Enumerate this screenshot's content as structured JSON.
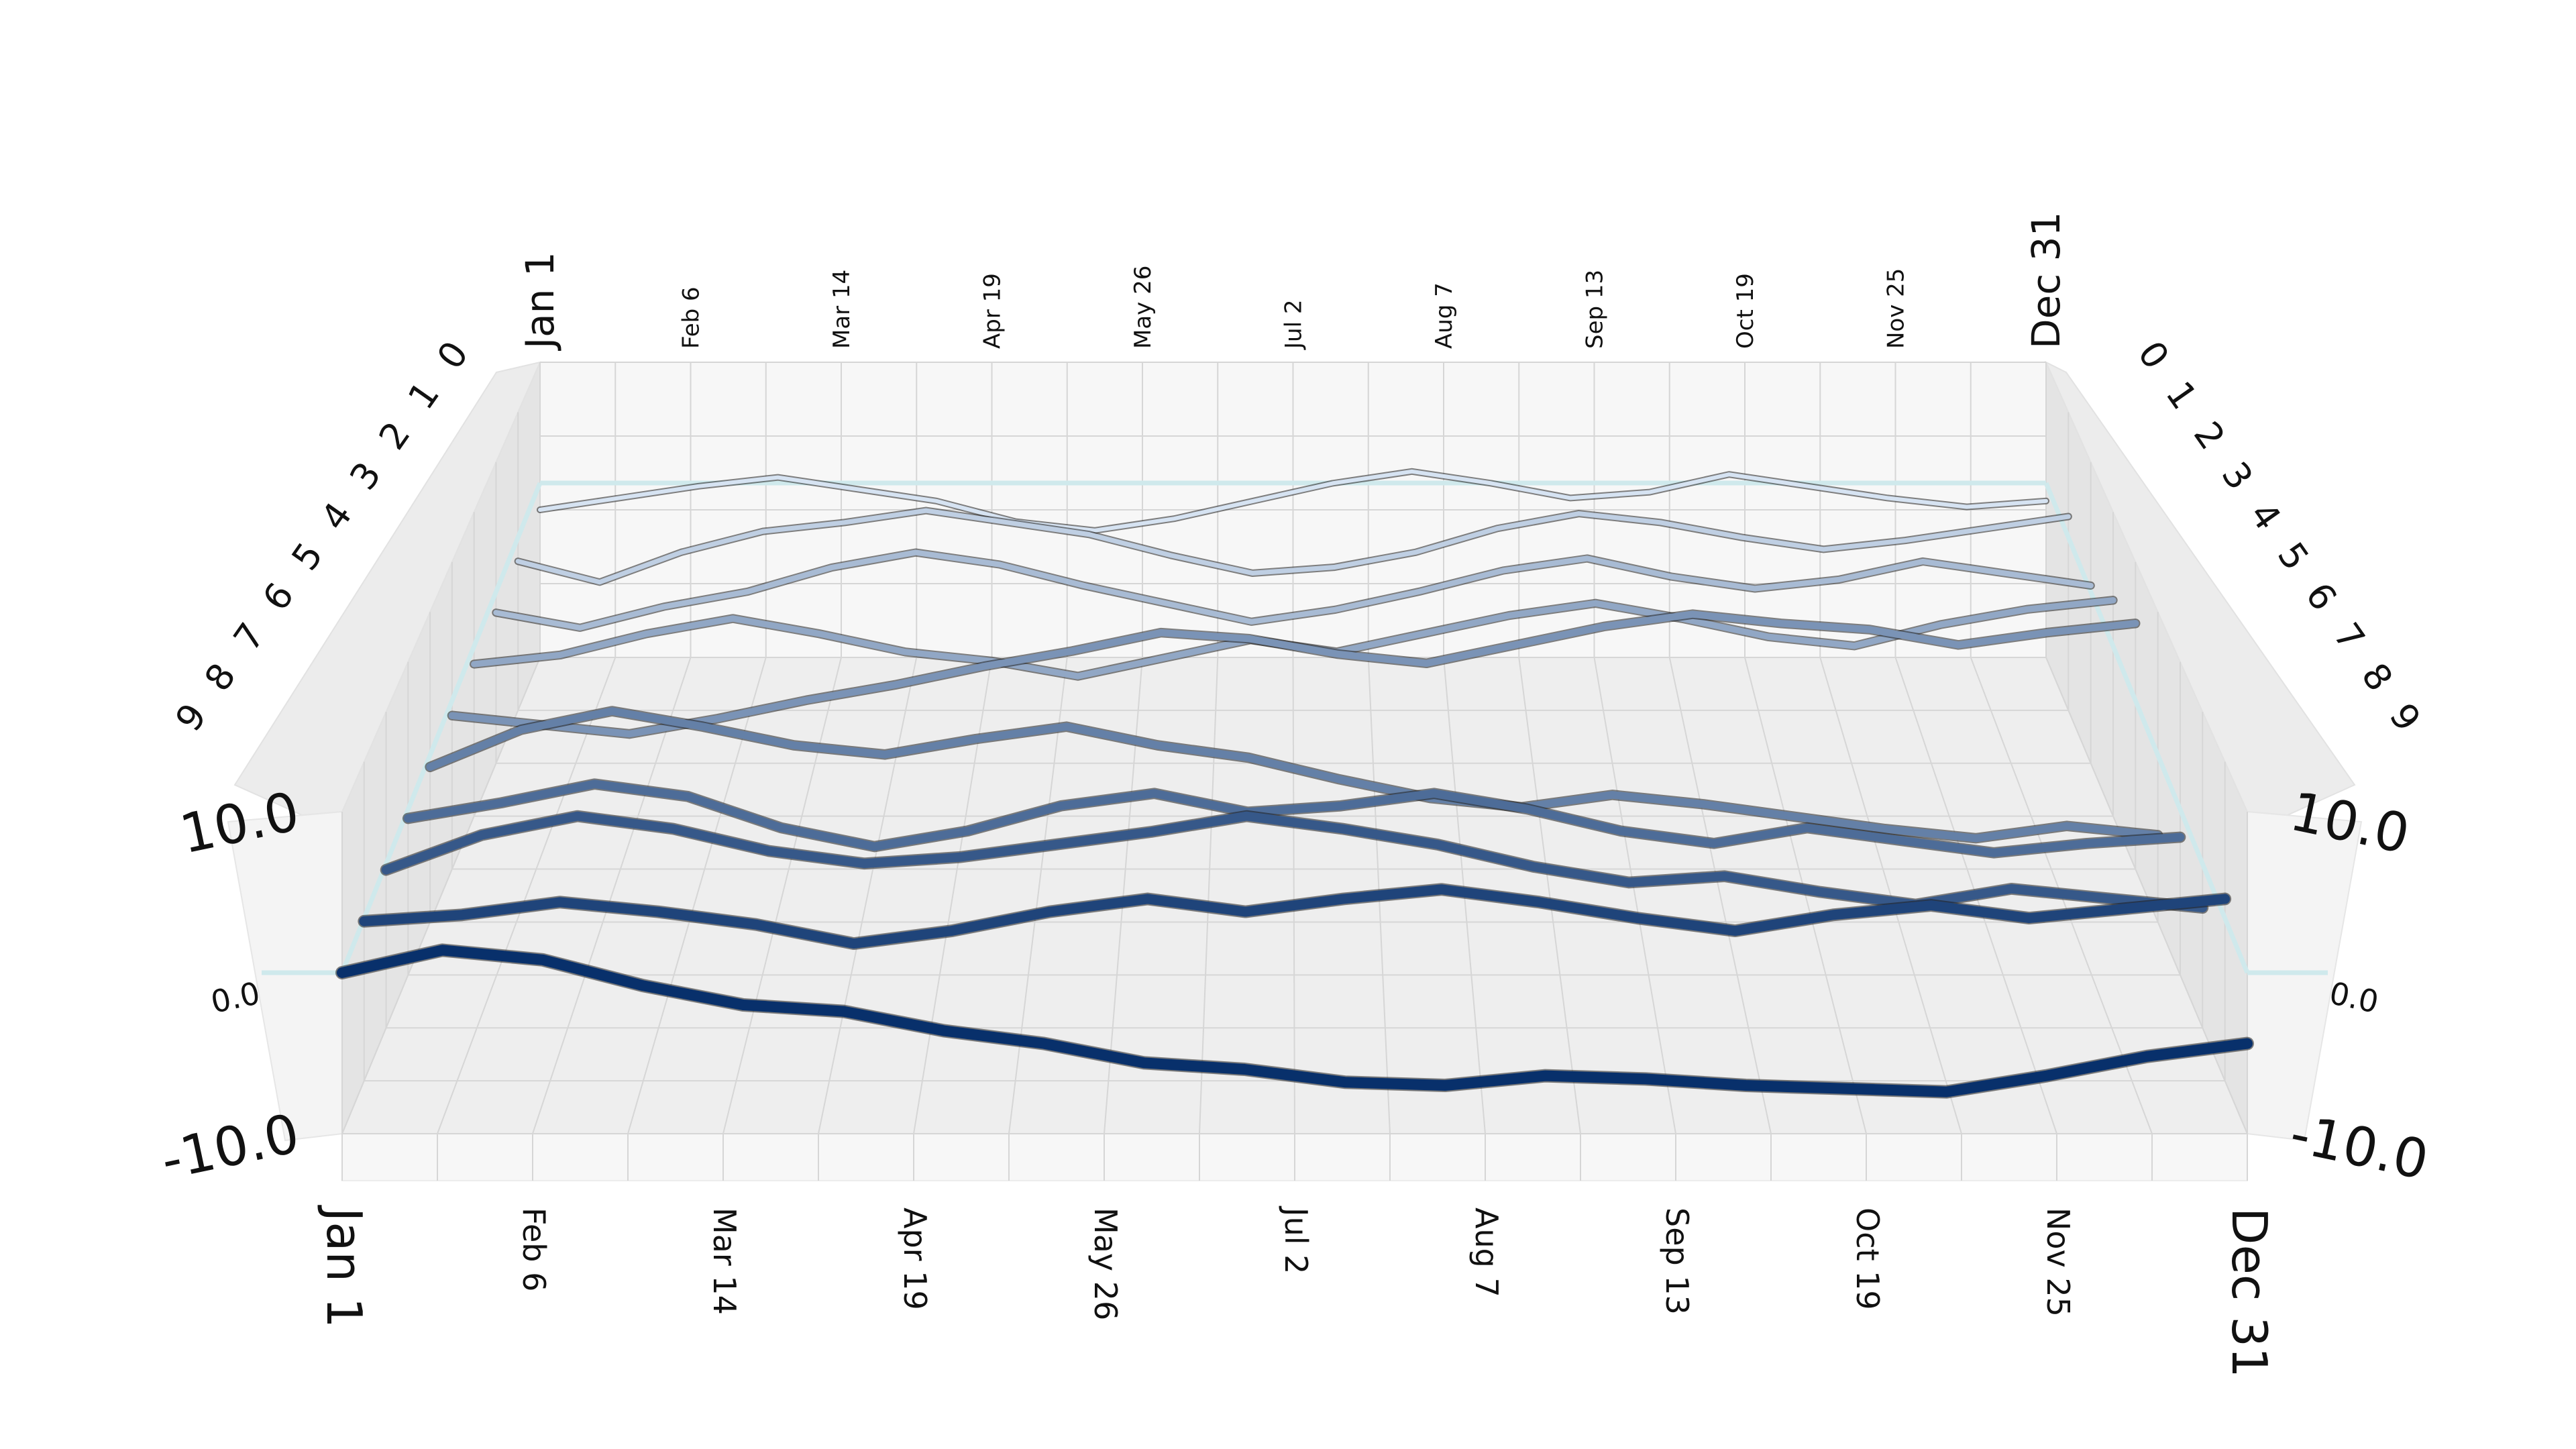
{
  "chart_data": {
    "type": "line",
    "title": "",
    "x_ticks": [
      "Jan 1",
      "Feb 6",
      "Mar 14",
      "Apr 19",
      "May 26",
      "Jul 2",
      "Aug 7",
      "Sep 13",
      "Oct 19",
      "Nov 25",
      "Dec 31"
    ],
    "depth_ticks": [
      "0",
      "1",
      "2",
      "3",
      "4",
      "5",
      "6",
      "7",
      "8",
      "9"
    ],
    "y_ticks": [
      "-10.0",
      "0.0",
      "10.0"
    ],
    "y_range": [
      -10,
      10
    ],
    "depth_range": [
      0,
      9
    ],
    "grid": true,
    "colors": {
      "light": "#d6e3f2",
      "dark": "#08306b",
      "axis_accent": "#cfe9ec",
      "wall_left": "#e4e4e4",
      "wall_back": "#f7f7f7",
      "floor": "#eeeeee"
    },
    "series": [
      {
        "key": "0",
        "values": [
          0.0,
          0.8,
          1.6,
          2.2,
          1.4,
          0.6,
          -0.8,
          -1.4,
          -0.6,
          0.6,
          1.8,
          2.6,
          1.8,
          0.8,
          1.2,
          2.4,
          1.6,
          0.8,
          0.2,
          0.6
        ]
      },
      {
        "key": "1",
        "values": [
          0.0,
          -1.4,
          0.6,
          2.0,
          2.6,
          3.4,
          2.6,
          1.8,
          0.4,
          -0.8,
          -0.4,
          0.6,
          2.2,
          3.2,
          2.6,
          1.6,
          0.8,
          1.4,
          2.2,
          3.0
        ]
      },
      {
        "key": "2",
        "values": [
          0.0,
          -1.0,
          0.4,
          1.4,
          3.0,
          4.0,
          3.2,
          1.8,
          0.6,
          -0.6,
          0.2,
          1.4,
          2.8,
          3.6,
          2.4,
          1.6,
          2.2,
          3.4,
          2.6,
          1.8
        ]
      },
      {
        "key": "3",
        "values": [
          0.0,
          0.6,
          2.0,
          3.0,
          2.0,
          0.8,
          0.2,
          -0.8,
          0.4,
          1.6,
          0.8,
          2.0,
          3.2,
          4.0,
          3.0,
          1.8,
          1.2,
          2.6,
          3.6,
          4.2
        ]
      },
      {
        "key": "4",
        "values": [
          0.0,
          -0.6,
          -1.2,
          -0.2,
          1.0,
          2.0,
          3.2,
          4.2,
          5.4,
          5.0,
          4.0,
          3.4,
          4.6,
          5.8,
          6.6,
          6.0,
          5.6,
          4.6,
          5.4,
          6.0
        ]
      },
      {
        "key": "5",
        "values": [
          0.0,
          2.4,
          3.6,
          2.6,
          1.4,
          0.8,
          1.8,
          2.6,
          1.4,
          0.6,
          -0.8,
          -2.0,
          -2.6,
          -1.8,
          -2.4,
          -3.2,
          -4.0,
          -4.6,
          -3.8,
          -4.4
        ]
      },
      {
        "key": "6",
        "values": [
          0.0,
          1.0,
          2.2,
          1.4,
          -0.6,
          -1.8,
          -0.8,
          0.8,
          1.6,
          0.4,
          0.8,
          1.6,
          0.6,
          -0.8,
          -1.6,
          -0.6,
          -1.4,
          -2.2,
          -1.6,
          -1.2
        ]
      },
      {
        "key": "7",
        "values": [
          0.0,
          2.2,
          3.4,
          2.6,
          1.2,
          0.4,
          0.8,
          1.6,
          2.4,
          3.4,
          2.6,
          1.6,
          0.2,
          -0.8,
          -0.4,
          -1.4,
          -2.2,
          -1.2,
          -1.8,
          -2.4
        ]
      },
      {
        "key": "8",
        "values": [
          0.0,
          0.4,
          1.2,
          0.6,
          -0.2,
          -1.4,
          -0.6,
          0.6,
          1.4,
          0.6,
          1.4,
          2.0,
          1.2,
          0.2,
          -0.6,
          0.4,
          1.0,
          0.2,
          0.8,
          1.4
        ]
      },
      {
        "key": "9",
        "values": [
          0.0,
          1.4,
          0.8,
          -0.8,
          -2.0,
          -2.4,
          -3.6,
          -4.4,
          -5.6,
          -6.0,
          -6.8,
          -7.0,
          -6.4,
          -6.6,
          -7.0,
          -7.2,
          -7.4,
          -6.4,
          -5.2,
          -4.4
        ]
      }
    ]
  }
}
